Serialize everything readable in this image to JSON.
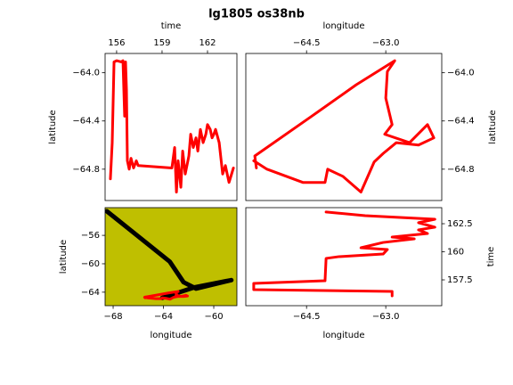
{
  "title": "lg1805 os38nb",
  "chart_data": [
    {
      "type": "line",
      "xlabel": "time",
      "ylabel": "latitude",
      "x_axis_position": "top",
      "y_axis_position": "left",
      "facecolor": "#ffffff",
      "xlim": [
        155.24,
        163.94
      ],
      "xticks": [
        156,
        159,
        162
      ],
      "ylim": [
        -65.06,
        -63.84
      ],
      "yticks": [
        {
          "value": -64.0,
          "label": "−64.0"
        },
        {
          "value": -64.4,
          "label": "−64.4"
        },
        {
          "value": -64.8,
          "label": "−64.8"
        }
      ],
      "series": [
        {
          "color": "#ff0000",
          "x": [
            155.59,
            155.71,
            155.83,
            156.0,
            156.3,
            156.42,
            156.53,
            156.59,
            156.65,
            156.71,
            156.83,
            156.95,
            157.12,
            157.3,
            157.42,
            159.65,
            159.83,
            159.95,
            160.06,
            160.24,
            160.36,
            160.53,
            160.77,
            160.89,
            161.06,
            161.24,
            161.36,
            161.53,
            161.71,
            161.89,
            162.0,
            162.18,
            162.3,
            162.42,
            162.53,
            162.77,
            163.0,
            163.18,
            163.42,
            163.59,
            163.71
          ],
          "values": [
            -64.88,
            -64.58,
            -63.91,
            -63.9,
            -63.91,
            -63.9,
            -64.36,
            -63.91,
            -64.14,
            -64.73,
            -64.8,
            -64.71,
            -64.79,
            -64.73,
            -64.77,
            -64.79,
            -64.62,
            -64.99,
            -64.73,
            -64.95,
            -64.65,
            -64.84,
            -64.69,
            -64.51,
            -64.62,
            -64.54,
            -64.65,
            -64.47,
            -64.58,
            -64.51,
            -64.43,
            -64.47,
            -64.54,
            -64.51,
            -64.47,
            -64.58,
            -64.84,
            -64.77,
            -64.91,
            -64.84,
            -64.79
          ]
        }
      ]
    },
    {
      "type": "line",
      "xlabel": "longitude",
      "ylabel": "latitude",
      "x_axis_position": "top",
      "y_axis_position": "right",
      "facecolor": "#ffffff",
      "xlim": [
        -65.65,
        -61.94
      ],
      "xticks": [
        {
          "value": -64.5,
          "label": "−64.5"
        },
        {
          "value": -63.0,
          "label": "−63.0"
        }
      ],
      "ylim": [
        -65.06,
        -63.84
      ],
      "yticks": [
        {
          "value": -64.0,
          "label": "−64.0"
        },
        {
          "value": -64.4,
          "label": "−64.4"
        },
        {
          "value": -64.8,
          "label": "−64.8"
        }
      ],
      "series": [
        {
          "color": "#ff0000",
          "x": [
            -65.45,
            -65.48,
            -65.25,
            -64.4,
            -63.56,
            -62.83,
            -62.97,
            -63.0,
            -62.88,
            -63.02,
            -62.55,
            -62.21,
            -62.09,
            -62.38,
            -62.8,
            -63.05,
            -63.22,
            -63.47,
            -63.81,
            -64.1,
            -64.15,
            -64.57,
            -65.25,
            -65.5
          ],
          "values": [
            -64.79,
            -64.69,
            -64.62,
            -64.36,
            -64.1,
            -63.9,
            -63.99,
            -64.21,
            -64.43,
            -64.51,
            -64.58,
            -64.43,
            -64.54,
            -64.6,
            -64.58,
            -64.67,
            -64.74,
            -64.99,
            -64.86,
            -64.8,
            -64.91,
            -64.91,
            -64.8,
            -64.73
          ]
        }
      ]
    },
    {
      "type": "line",
      "xlabel": "longitude",
      "ylabel": "latitude",
      "x_axis_position": "bottom",
      "y_axis_position": "left",
      "facecolor": "#bfbf00",
      "xlim": [
        -68.64,
        -58.16
      ],
      "xticks": [
        {
          "value": -68,
          "label": "−68"
        },
        {
          "value": -64,
          "label": "−64"
        },
        {
          "value": -60,
          "label": "−60"
        }
      ],
      "ylim": [
        -65.9,
        -52.1
      ],
      "yticks": [
        {
          "value": -56,
          "label": "−56"
        },
        {
          "value": -60,
          "label": "−60"
        },
        {
          "value": -64,
          "label": "−64"
        }
      ],
      "series": [
        {
          "color": "#000000",
          "x": [
            -68.5,
            -63.5,
            -62.4,
            -61.4,
            -58.6,
            -61.5,
            -64.1
          ],
          "values": [
            -52.6,
            -59.7,
            -62.6,
            -63.5,
            -62.3,
            -63.3,
            -64.8
          ]
        },
        {
          "color": "#ff0000",
          "x": [
            -65.45,
            -65.48,
            -65.25,
            -64.4,
            -63.56,
            -62.83,
            -62.97,
            -63.0,
            -62.88,
            -63.02,
            -62.55,
            -62.21,
            -62.09,
            -62.38,
            -62.8,
            -63.05,
            -63.22,
            -63.47,
            -63.81,
            -64.1,
            -64.15,
            -64.57,
            -65.25,
            -65.5
          ],
          "values": [
            -64.79,
            -64.69,
            -64.62,
            -64.36,
            -64.1,
            -63.9,
            -63.99,
            -64.21,
            -64.43,
            -64.51,
            -64.58,
            -64.43,
            -64.54,
            -64.6,
            -64.58,
            -64.67,
            -64.74,
            -64.99,
            -64.86,
            -64.8,
            -64.91,
            -64.91,
            -64.8,
            -64.73
          ]
        }
      ]
    },
    {
      "type": "line",
      "xlabel": "longitude",
      "ylabel": "time",
      "x_axis_position": "bottom",
      "y_axis_position": "right",
      "facecolor": "#ffffff",
      "xlim": [
        -65.65,
        -61.94
      ],
      "xticks": [
        {
          "value": -64.5,
          "label": "−64.5"
        },
        {
          "value": -63.0,
          "label": "−63.0"
        }
      ],
      "ylim": [
        155.2,
        163.93
      ],
      "yticks": [
        157.5,
        160.0,
        162.5
      ],
      "series": [
        {
          "color": "#ff0000",
          "x": [
            -62.88,
            -62.88,
            -65.5,
            -65.5,
            -64.15,
            -64.13,
            -63.9,
            -63.05,
            -62.97,
            -63.47,
            -63.05,
            -62.46,
            -62.88,
            -62.21,
            -62.38,
            -62.07,
            -62.38,
            -62.07,
            -63.39,
            -64.13
          ],
          "values": [
            156.07,
            156.47,
            156.63,
            157.18,
            157.42,
            159.41,
            159.56,
            159.8,
            160.2,
            160.36,
            160.83,
            161.15,
            161.31,
            161.63,
            161.95,
            162.19,
            162.59,
            162.9,
            163.22,
            163.54
          ]
        }
      ]
    }
  ]
}
